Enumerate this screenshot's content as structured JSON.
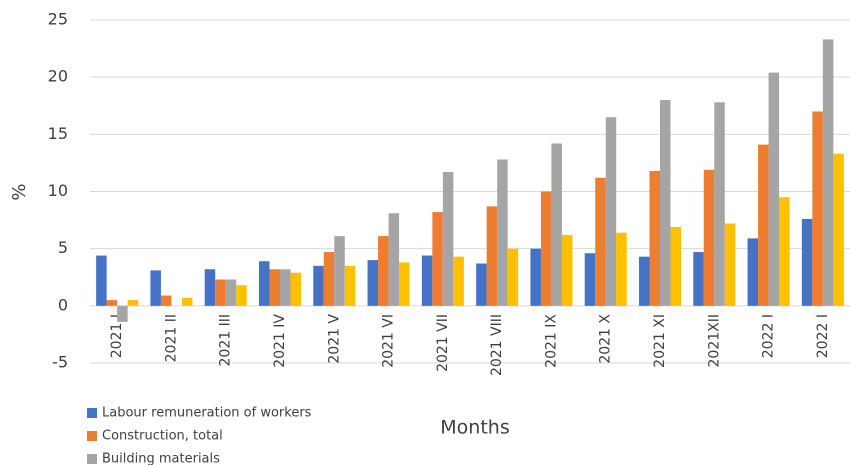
{
  "chart_data": {
    "type": "bar",
    "x_label": "Months",
    "y_label": "%",
    "categories": [
      "2021 I",
      "2021 II",
      "2021 III",
      "2021 IV",
      "2021 V",
      "2021 VI",
      "2021 VII",
      "2021 VIII",
      "2021 IX",
      "2021 X",
      "2021 XI",
      "2021XII",
      "2022 I",
      "2022 I"
    ],
    "series": [
      {
        "name": "Labour remuneration of workers",
        "color": "#4472c4",
        "values": [
          4.4,
          3.1,
          3.2,
          3.9,
          3.5,
          4.0,
          4.4,
          3.7,
          5.0,
          4.6,
          4.3,
          4.7,
          5.9,
          7.6
        ]
      },
      {
        "name": "Construction, total",
        "color": "#ed7d31",
        "values": [
          0.5,
          0.9,
          2.3,
          3.2,
          4.7,
          6.1,
          8.2,
          8.7,
          10.0,
          11.2,
          11.8,
          11.9,
          14.1,
          17.0
        ]
      },
      {
        "name": "Building materials",
        "color": "#a5a5a5",
        "values": [
          -1.4,
          0,
          2.3,
          3.2,
          6.1,
          8.1,
          11.7,
          12.8,
          14.2,
          16.5,
          18.0,
          17.8,
          20.4,
          23.3
        ]
      },
      {
        "color": "#ffc000",
        "values": [
          0.5,
          0.7,
          1.8,
          2.9,
          3.5,
          3.8,
          4.3,
          5.0,
          6.2,
          6.4,
          6.9,
          7.2,
          9.5,
          13.3
        ]
      }
    ],
    "ylim": [
      -5,
      25
    ],
    "yticks": [
      -5,
      0,
      5,
      10,
      15,
      20,
      25
    ],
    "grid": true
  }
}
